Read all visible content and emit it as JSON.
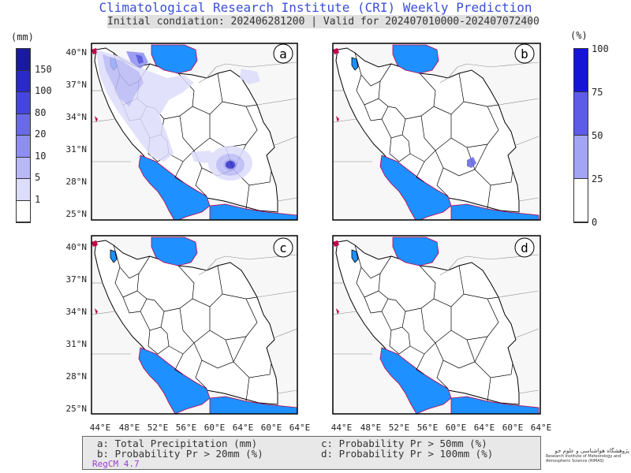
{
  "header": {
    "title": "Climatological Research Institute (CRI) Weekly Prediction",
    "subtitle": "Initial condiation: 202406281200 | Valid for 202407010000-202407072400"
  },
  "left_colorbar": {
    "unit": "(mm)",
    "labels": [
      "150",
      "100",
      "80",
      "20",
      "10",
      "5",
      "1"
    ],
    "colors": [
      "#1a1aa0",
      "#2a2ac8",
      "#4545e0",
      "#6a6ae8",
      "#8e8ef0",
      "#b8b8f6",
      "#dcdcfb",
      "#ffffff"
    ]
  },
  "right_colorbar": {
    "unit": "(%)",
    "labels": [
      "100",
      "75",
      "50",
      "25",
      "0"
    ],
    "colors": [
      "#1515d8",
      "#5c5ce8",
      "#a4a4f4",
      "#ffffff"
    ]
  },
  "panels": [
    {
      "letter": "a"
    },
    {
      "letter": "b"
    },
    {
      "letter": "c"
    },
    {
      "letter": "d"
    }
  ],
  "axes": {
    "lat_labels": [
      "40°N",
      "37°N",
      "34°N",
      "31°N",
      "28°N",
      "25°N"
    ],
    "lon_labels": [
      "44°E",
      "48°E",
      "52°E",
      "56°E",
      "60°E",
      "64°E"
    ]
  },
  "legend": {
    "a": "a: Total Precipitation (mm)",
    "b": "b: Probability Pr > 20mm (%)",
    "c": "c: Probability Pr > 50mm (%)",
    "d": "d: Probability Pr > 100mm (%)",
    "model": "RegCM 4.7"
  },
  "logo": {
    "fa": "پژوهشگاه هواشناسی و علوم جو",
    "en": "Research Institute of Meteorology and Atmospheric Science (RIMAS)"
  },
  "colors": {
    "water": "#1e90ff",
    "coast": "#c0004a",
    "land": "#ffffff",
    "title": "#3a4fd6",
    "model_text": "#9a3fd0"
  }
}
